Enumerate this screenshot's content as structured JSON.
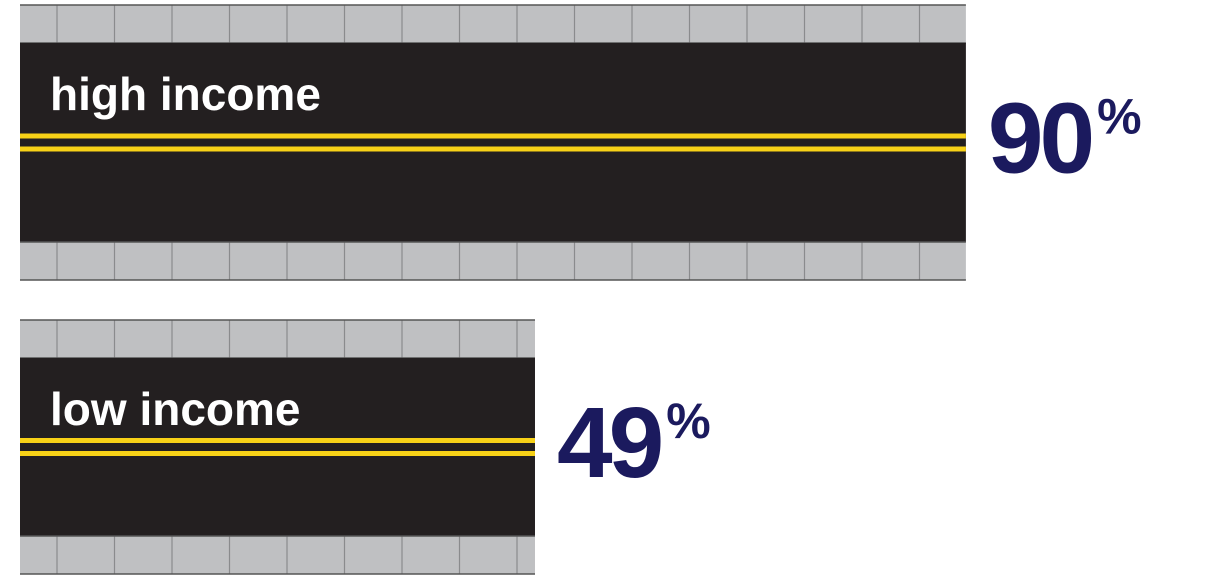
{
  "chart_data": {
    "type": "bar",
    "orientation": "horizontal",
    "categories": [
      "high income",
      "low income"
    ],
    "values": [
      90,
      49
    ],
    "value_labels": [
      "90%",
      "49%"
    ],
    "xlim": [
      0,
      100
    ],
    "color": "#231f20",
    "line_color": "#f7d117",
    "label_color": "#1b1a5e"
  }
}
